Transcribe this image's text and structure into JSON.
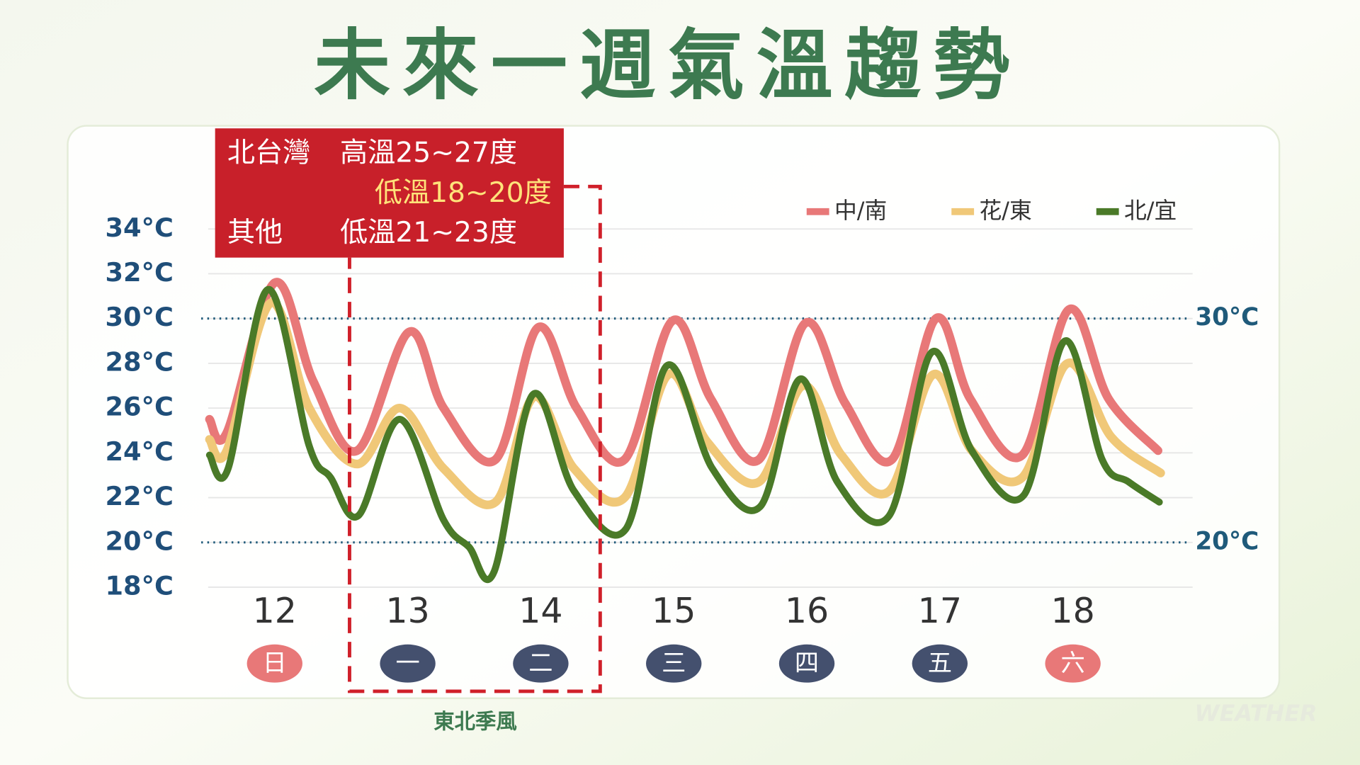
{
  "chart_data": {
    "type": "line",
    "title": "未來一週氣溫趨勢",
    "xlim": [
      11.5,
      18.9
    ],
    "xticks": [
      12,
      13,
      14,
      15,
      16,
      17,
      18
    ],
    "weekdays": [
      "日",
      "一",
      "二",
      "三",
      "四",
      "五",
      "六"
    ],
    "weekday_colors": [
      "#e87878",
      "#44506e",
      "#44506e",
      "#44506e",
      "#44506e",
      "#44506e",
      "#e87878"
    ],
    "ylim": [
      18,
      34
    ],
    "yticks": [
      {
        "value": 18,
        "label": "18°C"
      },
      {
        "value": 20,
        "label": "20°C"
      },
      {
        "value": 22,
        "label": "22°C"
      },
      {
        "value": 24,
        "label": "24°C"
      },
      {
        "value": 26,
        "label": "26°C"
      },
      {
        "value": 28,
        "label": "28°C"
      },
      {
        "value": 30,
        "label": "30°C"
      },
      {
        "value": 32,
        "label": "32°C"
      },
      {
        "value": 34,
        "label": "34°C"
      }
    ],
    "grid": true,
    "reference_lines": [
      {
        "value": 30,
        "label": "30°C"
      },
      {
        "value": 20,
        "label": "20°C"
      }
    ],
    "legend_position": "top-right",
    "series": [
      {
        "name": "中/南",
        "color": "#e87878",
        "x": [
          11.51,
          11.64,
          12,
          12.29,
          12.62,
          13.01,
          13.27,
          13.66,
          13.98,
          14.27,
          14.63,
          14.99,
          15.28,
          15.64,
          15.99,
          16.29,
          16.64,
          16.97,
          17.23,
          17.62,
          17.97,
          18.27,
          18.64
        ],
        "values": [
          25.5,
          24.9,
          31.6,
          27.2,
          24.1,
          29.4,
          26,
          23.7,
          29.6,
          26,
          23.7,
          29.9,
          26.4,
          23.7,
          29.8,
          26.2,
          23.7,
          30,
          26.4,
          23.9,
          30.4,
          26.4,
          24.1
        ]
      },
      {
        "name": "花/東",
        "color": "#f0c878",
        "x": [
          11.51,
          11.64,
          11.97,
          12.26,
          12.62,
          12.94,
          13.27,
          13.66,
          13.95,
          14.25,
          14.63,
          14.96,
          15.25,
          15.64,
          15.97,
          16.26,
          16.62,
          16.95,
          17.24,
          17.62,
          17.96,
          18.29,
          18.66
        ],
        "values": [
          24.6,
          24.1,
          30.7,
          26,
          23.5,
          26,
          23.3,
          21.8,
          26.5,
          23.3,
          22,
          27.5,
          24.5,
          22.7,
          27,
          23.9,
          22.3,
          27.5,
          24.1,
          22.9,
          28,
          24.7,
          23.1
        ]
      },
      {
        "name": "北/宜",
        "color": "#4a7a28",
        "x": [
          11.51,
          11.65,
          11.95,
          12.26,
          12.42,
          12.63,
          12.94,
          13.27,
          13.46,
          13.65,
          13.94,
          14.25,
          14.64,
          14.95,
          15.29,
          15.65,
          15.95,
          16.23,
          16.62,
          16.94,
          17.24,
          17.63,
          17.94,
          18.22,
          18.42,
          18.65
        ],
        "values": [
          23.9,
          23.3,
          31.3,
          24.3,
          22.9,
          21.2,
          25.5,
          21,
          19.8,
          18.7,
          26.6,
          22.3,
          20.6,
          27.9,
          23.3,
          21.6,
          27.3,
          22.7,
          21.2,
          28.5,
          24.1,
          22.1,
          29,
          23.7,
          22.7,
          21.8
        ]
      }
    ],
    "annotation": {
      "line1_region": "北台灣",
      "line1_text": "高溫25~27度",
      "line2_text": "低溫18~20度",
      "line3_region": "其他",
      "line3_text": "低溫21~23度"
    },
    "highlight_label": "東北季風",
    "watermark": "WEATHER"
  }
}
